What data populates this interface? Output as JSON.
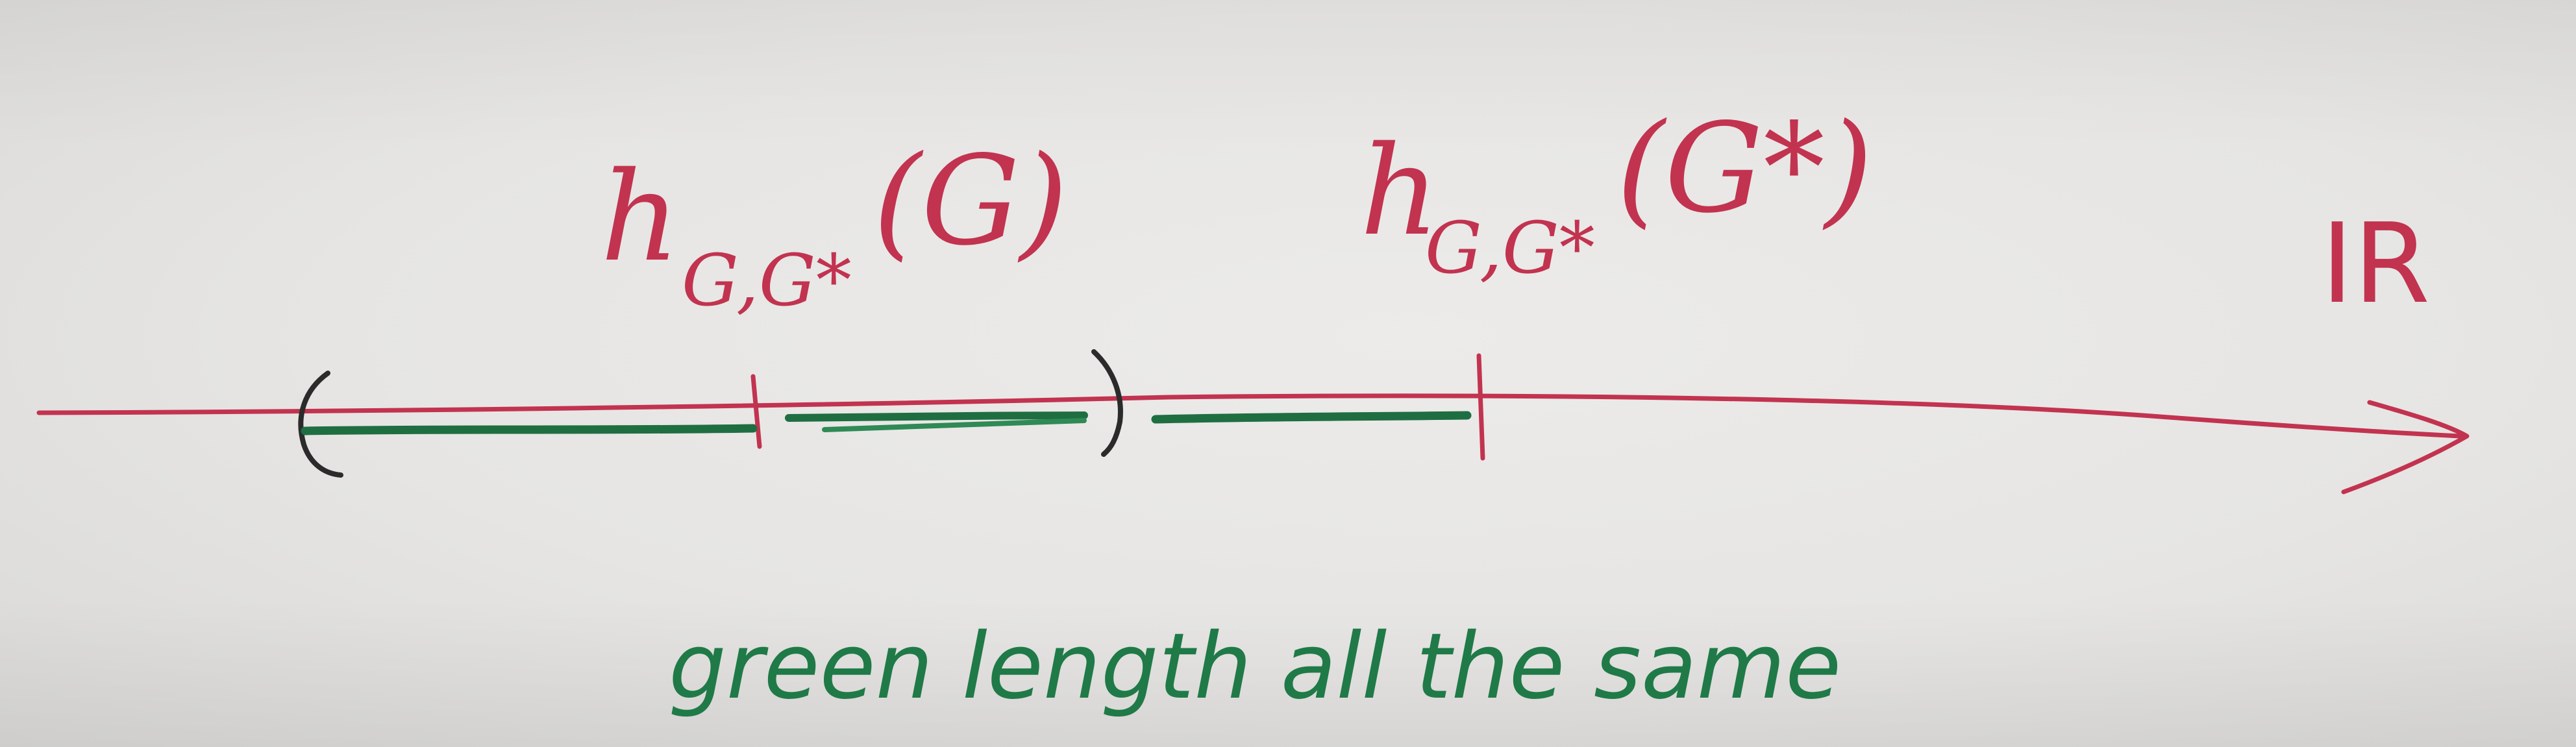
{
  "diagram": {
    "label_left": {
      "base": "h",
      "subscript": "G,G*",
      "argument": "(G)"
    },
    "label_right": {
      "base": "h",
      "subscript": "G,G*",
      "argument": "(G*)"
    },
    "axis_label": "IR",
    "note": "green length all the same",
    "colors": {
      "axis": "#c23350",
      "segments": "#1f6e42",
      "brackets": "#2b2b2b",
      "note": "#1f7a48"
    }
  }
}
